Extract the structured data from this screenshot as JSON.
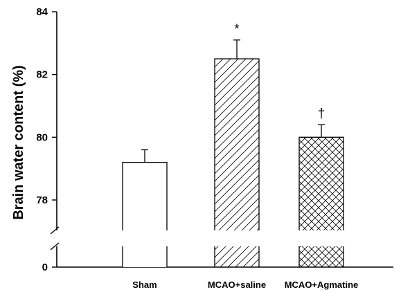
{
  "chart_data": {
    "type": "bar",
    "title": "",
    "xlabel": "",
    "ylabel": "Brain water content (%)",
    "categories": [
      "Sham",
      "MCAO+saline",
      "MCAO+Agmatine"
    ],
    "values": [
      79.2,
      82.5,
      80.0
    ],
    "errors": [
      0.4,
      0.6,
      0.4
    ],
    "annotations": [
      "",
      "*",
      "†"
    ],
    "patterns": [
      "none",
      "diagonal",
      "crosshatch"
    ],
    "ylim": [
      0,
      84
    ],
    "axis_break": [
      0,
      77
    ],
    "upper_range": [
      77,
      84
    ],
    "yticks_upper": [
      78,
      80,
      82,
      84
    ],
    "yticks_upper_labels": [
      "78",
      "80",
      "82",
      "84"
    ],
    "ytick_bottom": 0,
    "ytick_bottom_label": "0",
    "grid": false,
    "legend": "none"
  }
}
